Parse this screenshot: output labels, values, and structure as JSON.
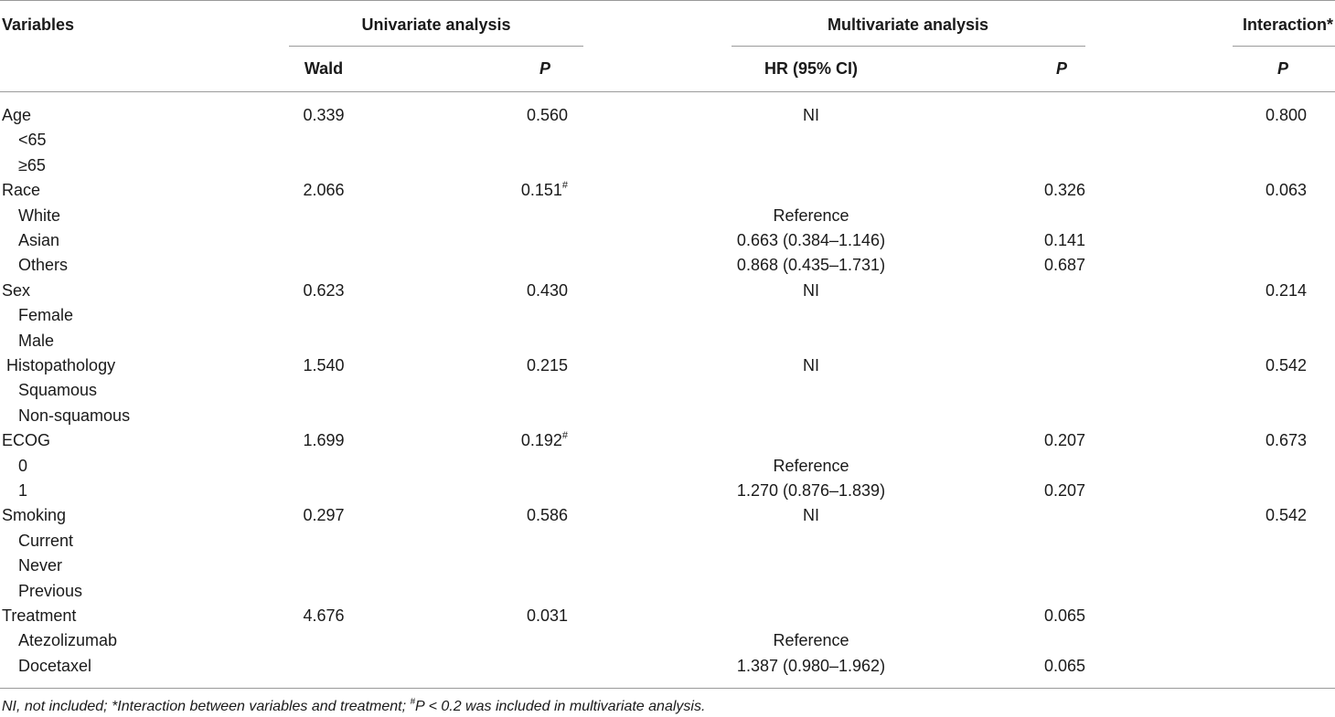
{
  "header": {
    "variables": "Variables",
    "univariate": "Univariate analysis",
    "multivariate": "Multivariate analysis",
    "interaction": "Interaction*",
    "wald": "Wald",
    "p1": "P",
    "hr": "HR (95% CI)",
    "p2": "P",
    "p3": "P"
  },
  "rows": [
    {
      "label": "Age",
      "indent": false,
      "wald": "0.339",
      "p": "0.560",
      "p_sup": "",
      "hr": "NI",
      "mp": "",
      "inter": "0.800"
    },
    {
      "label": "<65",
      "indent": true,
      "wald": "",
      "p": "",
      "p_sup": "",
      "hr": "",
      "mp": "",
      "inter": ""
    },
    {
      "label": "≥65",
      "indent": true,
      "wald": "",
      "p": "",
      "p_sup": "",
      "hr": "",
      "mp": "",
      "inter": ""
    },
    {
      "label": "Race",
      "indent": false,
      "wald": "2.066",
      "p": "0.151",
      "p_sup": "#",
      "hr": "",
      "mp": "0.326",
      "inter": "0.063"
    },
    {
      "label": "White",
      "indent": true,
      "wald": "",
      "p": "",
      "p_sup": "",
      "hr": "Reference",
      "mp": "",
      "inter": ""
    },
    {
      "label": "Asian",
      "indent": true,
      "wald": "",
      "p": "",
      "p_sup": "",
      "hr": "0.663 (0.384–1.146)",
      "mp": "0.141",
      "inter": ""
    },
    {
      "label": "Others",
      "indent": true,
      "wald": "",
      "p": "",
      "p_sup": "",
      "hr": "0.868 (0.435–1.731)",
      "mp": "0.687",
      "inter": ""
    },
    {
      "label": "Sex",
      "indent": false,
      "wald": "0.623",
      "p": "0.430",
      "p_sup": "",
      "hr": "NI",
      "mp": "",
      "inter": "0.214"
    },
    {
      "label": "Female",
      "indent": true,
      "wald": "",
      "p": "",
      "p_sup": "",
      "hr": "",
      "mp": "",
      "inter": ""
    },
    {
      "label": "Male",
      "indent": true,
      "wald": "",
      "p": "",
      "p_sup": "",
      "hr": "",
      "mp": "",
      "inter": ""
    },
    {
      "label": " Histopathology",
      "indent": false,
      "wald": "1.540",
      "p": "0.215",
      "p_sup": "",
      "hr": "NI",
      "mp": "",
      "inter": "0.542"
    },
    {
      "label": "Squamous",
      "indent": true,
      "wald": "",
      "p": "",
      "p_sup": "",
      "hr": "",
      "mp": "",
      "inter": ""
    },
    {
      "label": "Non-squamous",
      "indent": true,
      "wald": "",
      "p": "",
      "p_sup": "",
      "hr": "",
      "mp": "",
      "inter": ""
    },
    {
      "label": "ECOG",
      "indent": false,
      "wald": "1.699",
      "p": "0.192",
      "p_sup": "#",
      "hr": "",
      "mp": "0.207",
      "inter": "0.673"
    },
    {
      "label": "0",
      "indent": true,
      "wald": "",
      "p": "",
      "p_sup": "",
      "hr": "Reference",
      "mp": "",
      "inter": ""
    },
    {
      "label": "1",
      "indent": true,
      "wald": "",
      "p": "",
      "p_sup": "",
      "hr": "1.270 (0.876–1.839)",
      "mp": "0.207",
      "inter": ""
    },
    {
      "label": "Smoking",
      "indent": false,
      "wald": "0.297",
      "p": "0.586",
      "p_sup": "",
      "hr": "NI",
      "mp": "",
      "inter": "0.542"
    },
    {
      "label": "Current",
      "indent": true,
      "wald": "",
      "p": "",
      "p_sup": "",
      "hr": "",
      "mp": "",
      "inter": ""
    },
    {
      "label": "Never",
      "indent": true,
      "wald": "",
      "p": "",
      "p_sup": "",
      "hr": "",
      "mp": "",
      "inter": ""
    },
    {
      "label": "Previous",
      "indent": true,
      "wald": "",
      "p": "",
      "p_sup": "",
      "hr": "",
      "mp": "",
      "inter": ""
    },
    {
      "label": "Treatment",
      "indent": false,
      "wald": "4.676",
      "p": "0.031",
      "p_sup": "",
      "hr": "",
      "mp": "0.065",
      "inter": ""
    },
    {
      "label": "Atezolizumab",
      "indent": true,
      "wald": "",
      "p": "",
      "p_sup": "",
      "hr": "Reference",
      "mp": "",
      "inter": ""
    },
    {
      "label": "Docetaxel",
      "indent": true,
      "wald": "",
      "p": "",
      "p_sup": "",
      "hr": "1.387 (0.980–1.962)",
      "mp": "0.065",
      "inter": ""
    }
  ],
  "footnote": {
    "part1": "NI, not included; *Interaction between variables and treatment; ",
    "sup": "#",
    "part2": "P < 0.2 was included in multivariate analysis."
  }
}
